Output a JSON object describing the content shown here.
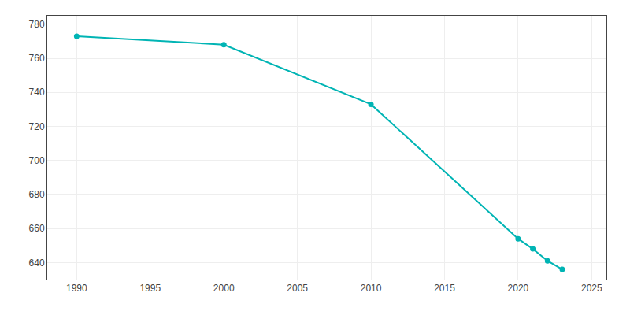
{
  "chart_data": {
    "type": "line",
    "x": [
      1990,
      2000,
      2010,
      2020,
      2021,
      2022,
      2023
    ],
    "values": [
      773,
      768,
      733,
      654,
      648,
      641,
      636
    ],
    "color": "#00b4b4",
    "marker": "circle",
    "xlim": [
      1988,
      2026
    ],
    "ylim": [
      630,
      785
    ],
    "xticks": [
      1990,
      1995,
      2000,
      2005,
      2010,
      2015,
      2020,
      2025
    ],
    "yticks": [
      640,
      660,
      680,
      700,
      720,
      740,
      760,
      780
    ],
    "grid": true
  }
}
